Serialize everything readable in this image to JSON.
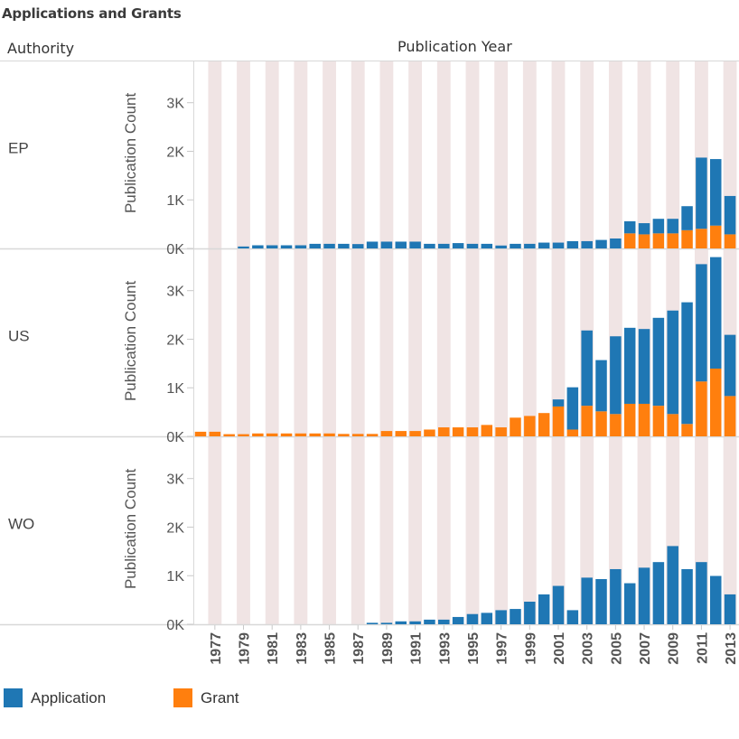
{
  "title": "Applications and Grants",
  "row_header": "Authority",
  "column_header": "Publication Year",
  "colors": {
    "application": "#1f77b4",
    "grant": "#ff7f0e",
    "band": "#f0e4e4",
    "grid": "#d8d8d8"
  },
  "legend": [
    {
      "key": "application",
      "label": "Application"
    },
    {
      "key": "grant",
      "label": "Grant"
    }
  ],
  "chart_data": {
    "type": "bar",
    "stacked": true,
    "title": "Applications and Grants",
    "xlabel": "Publication Year",
    "ylabel": "Publication Count",
    "ylim": [
      0,
      3850
    ],
    "y_ticks": [
      0,
      1000,
      2000,
      3000
    ],
    "y_tick_labels": [
      "0K",
      "1K",
      "2K",
      "3K"
    ],
    "x": [
      1976,
      1977,
      1978,
      1979,
      1980,
      1981,
      1982,
      1983,
      1984,
      1985,
      1986,
      1987,
      1988,
      1989,
      1990,
      1991,
      1992,
      1993,
      1994,
      1995,
      1996,
      1997,
      1998,
      1999,
      2000,
      2001,
      2002,
      2003,
      2004,
      2005,
      2006,
      2007,
      2008,
      2009,
      2010,
      2011,
      2012,
      2013
    ],
    "x_tick_labels": [
      "1977",
      "1979",
      "1981",
      "1983",
      "1985",
      "1987",
      "1989",
      "1991",
      "1993",
      "1995",
      "1997",
      "1999",
      "2001",
      "2003",
      "2005",
      "2007",
      "2009",
      "2011",
      "2013"
    ],
    "legend_position": "bottom-left",
    "panels": [
      {
        "authority": "EP",
        "series": [
          {
            "name": "Grant",
            "values": [
              0,
              0,
              0,
              0,
              0,
              0,
              0,
              0,
              0,
              0,
              0,
              0,
              0,
              0,
              0,
              0,
              0,
              0,
              0,
              0,
              0,
              0,
              0,
              0,
              0,
              0,
              0,
              0,
              0,
              0,
              310,
              290,
              310,
              310,
              375,
              405,
              470,
              290
            ]
          },
          {
            "name": "Application",
            "values": [
              0,
              0,
              0,
              40,
              65,
              65,
              65,
              65,
              95,
              95,
              95,
              90,
              140,
              140,
              140,
              140,
              95,
              95,
              110,
              95,
              95,
              60,
              95,
              95,
              120,
              120,
              150,
              150,
              175,
              205,
              250,
              230,
              300,
              300,
              495,
              1465,
              1370,
              790
            ]
          }
        ]
      },
      {
        "authority": "US",
        "series": [
          {
            "name": "Grant",
            "values": [
              95,
              95,
              45,
              45,
              60,
              60,
              60,
              60,
              60,
              60,
              50,
              50,
              50,
              110,
              110,
              110,
              140,
              185,
              185,
              185,
              235,
              185,
              385,
              420,
              480,
              615,
              140,
              630,
              515,
              460,
              670,
              670,
              630,
              460,
              255,
              1130,
              1395,
              830
            ]
          },
          {
            "name": "Application",
            "values": [
              0,
              0,
              0,
              0,
              0,
              0,
              0,
              0,
              0,
              0,
              0,
              0,
              0,
              0,
              0,
              0,
              0,
              0,
              0,
              0,
              0,
              0,
              0,
              0,
              0,
              145,
              870,
              1550,
              1055,
              1600,
              1565,
              1540,
              1810,
              2130,
              2505,
              2415,
              2295,
              1260
            ]
          }
        ]
      },
      {
        "authority": "WO",
        "series": [
          {
            "name": "Grant",
            "values": [
              0,
              0,
              0,
              0,
              0,
              0,
              0,
              0,
              0,
              0,
              0,
              0,
              0,
              0,
              0,
              0,
              0,
              0,
              0,
              0,
              0,
              0,
              0,
              0,
              0,
              0,
              0,
              0,
              0,
              0,
              0,
              0,
              0,
              0,
              0,
              0,
              0,
              0
            ]
          },
          {
            "name": "Application",
            "values": [
              0,
              0,
              0,
              0,
              0,
              0,
              0,
              0,
              0,
              0,
              0,
              0,
              30,
              30,
              60,
              60,
              95,
              95,
              150,
              210,
              235,
              290,
              315,
              465,
              615,
              790,
              290,
              960,
              930,
              1135,
              845,
              1165,
              1280,
              1610,
              1135,
              1280,
              995,
              615
            ]
          }
        ]
      }
    ]
  }
}
